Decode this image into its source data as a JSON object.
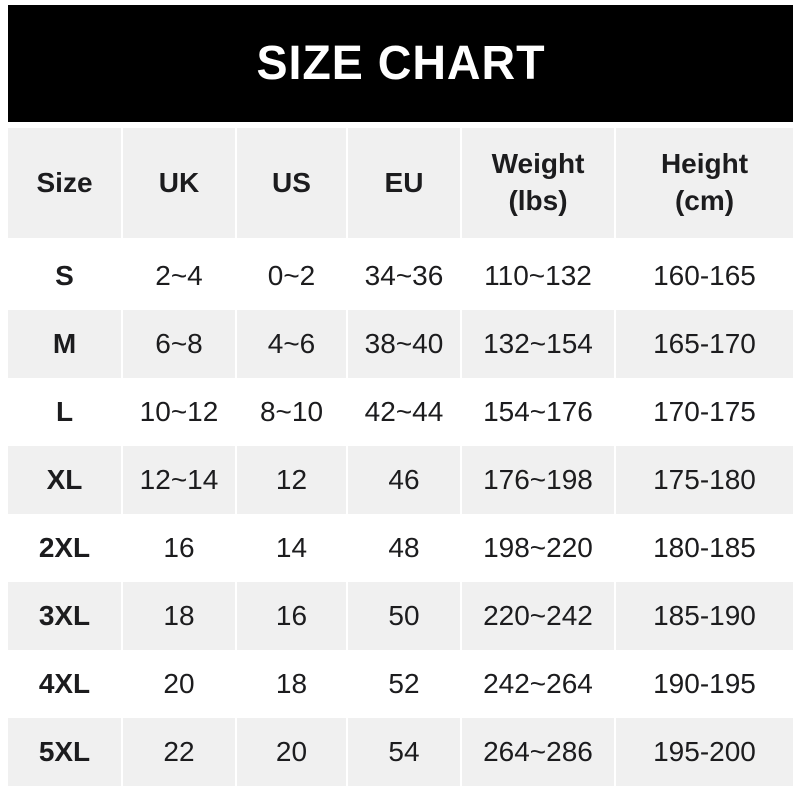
{
  "title": "SIZE CHART",
  "colors": {
    "banner_bg": "#000000",
    "title_text": "#ffffff",
    "row_shade": "#f0f0f0",
    "text": "#1c1c1e"
  },
  "header_lines": [
    [
      "Size"
    ],
    [
      "UK"
    ],
    [
      "US"
    ],
    [
      "EU"
    ],
    [
      "Weight",
      "(lbs)"
    ],
    [
      "Height",
      "(cm)"
    ]
  ],
  "chart_data": {
    "type": "table",
    "title": "SIZE CHART",
    "columns": [
      "Size",
      "UK",
      "US",
      "EU",
      "Weight (lbs)",
      "Height (cm)"
    ],
    "rows": [
      [
        "S",
        "2~4",
        "0~2",
        "34~36",
        "110~132",
        "160-165"
      ],
      [
        "M",
        "6~8",
        "4~6",
        "38~40",
        "132~154",
        "165-170"
      ],
      [
        "L",
        "10~12",
        "8~10",
        "42~44",
        "154~176",
        "170-175"
      ],
      [
        "XL",
        "12~14",
        "12",
        "46",
        "176~198",
        "175-180"
      ],
      [
        "2XL",
        "16",
        "14",
        "48",
        "198~220",
        "180-185"
      ],
      [
        "3XL",
        "18",
        "16",
        "50",
        "220~242",
        "185-190"
      ],
      [
        "4XL",
        "20",
        "18",
        "52",
        "242~264",
        "190-195"
      ],
      [
        "5XL",
        "22",
        "20",
        "54",
        "264~286",
        "195-200"
      ]
    ]
  }
}
